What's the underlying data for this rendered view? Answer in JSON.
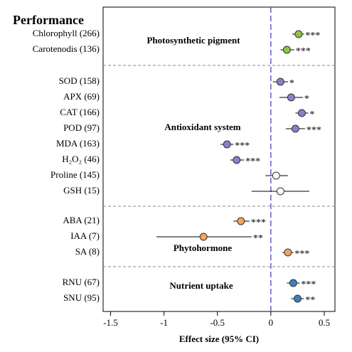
{
  "chart_data": {
    "type": "forest",
    "heading": "Performance",
    "xlabel": "Effect size (95% CI)",
    "xlim": [
      -1.57,
      0.6
    ],
    "xticks": [
      -1.5,
      -1,
      -0.5,
      0,
      0.5
    ],
    "reference_line": 0,
    "reference_color": "#6a5acd",
    "series": [
      {
        "name": "Photosynthetic pigment",
        "categories": [
          "Chlorophyll (266)",
          "Carotenodis (136)"
        ],
        "values": [
          0.26,
          0.15
        ],
        "ci_low": [
          0.2,
          0.09
        ],
        "ci_high": [
          0.31,
          0.22
        ],
        "significance": [
          "***",
          "***"
        ],
        "colors": [
          "#8dc63f",
          "#8dc63f"
        ]
      },
      {
        "name": "Antioxidant system",
        "categories": [
          "SOD (158)",
          "APX (69)",
          "CAT (166)",
          "POD (97)",
          "MDA (163)",
          "H₂O₂ (46)",
          "Proline (145)",
          "GSH (15)"
        ],
        "values": [
          0.09,
          0.19,
          0.29,
          0.23,
          -0.41,
          -0.32,
          0.05,
          0.09
        ],
        "ci_low": [
          0.02,
          0.08,
          0.23,
          0.14,
          -0.47,
          -0.38,
          -0.05,
          -0.18
        ],
        "ci_high": [
          0.16,
          0.3,
          0.35,
          0.32,
          -0.35,
          -0.25,
          0.16,
          0.36
        ],
        "significance": [
          "*",
          "*",
          "*",
          "***",
          "***",
          "***",
          null,
          null
        ],
        "colors": [
          "#8b80c8",
          "#8b80c8",
          "#8b80c8",
          "#8b80c8",
          "#8b80c8",
          "#8b80c8",
          "#ffffff",
          "#ffffff"
        ]
      },
      {
        "name": "Phytohormone",
        "categories": [
          "ABA (21)",
          "IAA (7)",
          "SA (8)"
        ],
        "values": [
          -0.28,
          -0.63,
          0.16
        ],
        "ci_low": [
          -0.35,
          -1.07,
          0.11
        ],
        "ci_high": [
          -0.2,
          -0.18,
          0.21
        ],
        "significance": [
          "***",
          "**",
          "***"
        ],
        "colors": [
          "#f4a460",
          "#f4a460",
          "#f4a460"
        ]
      },
      {
        "name": "Nutrient uptake",
        "categories": [
          "RNU (67)",
          "SNU (95)"
        ],
        "values": [
          0.21,
          0.25
        ],
        "ci_low": [
          0.15,
          0.19
        ],
        "ci_high": [
          0.27,
          0.31
        ],
        "significance": [
          "***",
          "**"
        ],
        "colors": [
          "#3a80c4",
          "#3a80c4"
        ]
      }
    ]
  }
}
